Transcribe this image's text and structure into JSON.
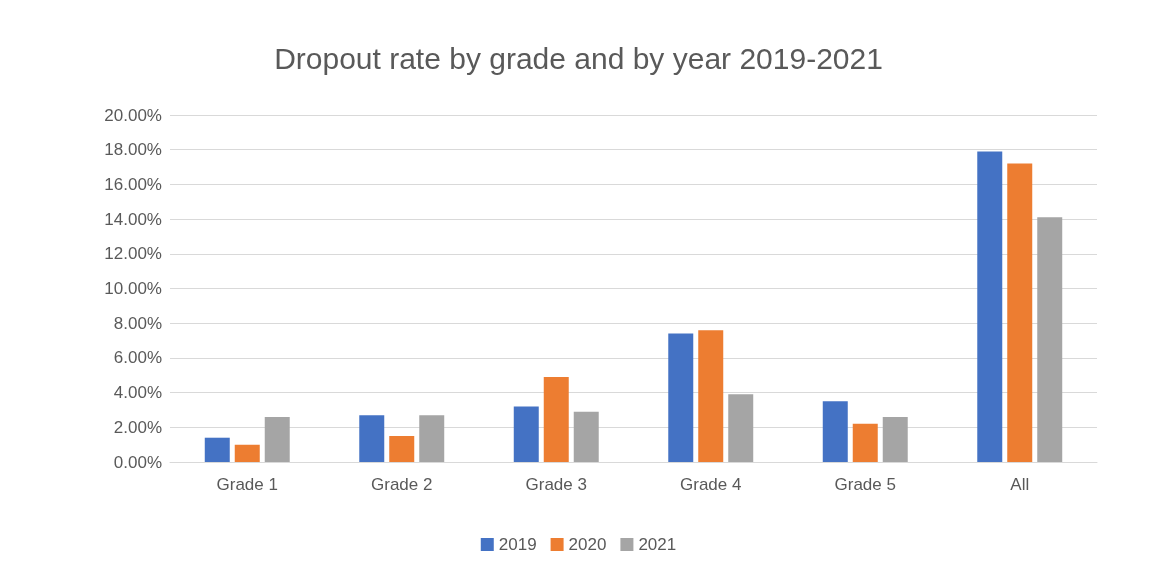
{
  "chart_data": {
    "type": "bar",
    "title": "Dropout rate by grade and by year 2019-2021",
    "categories": [
      "Grade 1",
      "Grade 2",
      "Grade 3",
      "Grade 4",
      "Grade 5",
      "All"
    ],
    "series": [
      {
        "name": "2019",
        "color": "#4472c4",
        "values": [
          1.4,
          2.7,
          3.2,
          7.4,
          3.5,
          17.9
        ]
      },
      {
        "name": "2020",
        "color": "#ed7d31",
        "values": [
          1.0,
          1.5,
          4.9,
          7.6,
          2.2,
          17.2
        ]
      },
      {
        "name": "2021",
        "color": "#a5a5a5",
        "values": [
          2.6,
          2.7,
          2.9,
          3.9,
          2.6,
          14.1
        ]
      }
    ],
    "ylim": [
      0,
      20
    ],
    "yticks": [
      {
        "value": 0,
        "label": "0.00%"
      },
      {
        "value": 2,
        "label": "2.00%"
      },
      {
        "value": 4,
        "label": "4.00%"
      },
      {
        "value": 6,
        "label": "6.00%"
      },
      {
        "value": 8,
        "label": "8.00%"
      },
      {
        "value": 10,
        "label": "10.00%"
      },
      {
        "value": 12,
        "label": "12.00%"
      },
      {
        "value": 14,
        "label": "14.00%"
      },
      {
        "value": 16,
        "label": "16.00%"
      },
      {
        "value": 18,
        "label": "18.00%"
      },
      {
        "value": 20,
        "label": "20.00%"
      }
    ],
    "grid": "y",
    "legend": "bottom"
  }
}
